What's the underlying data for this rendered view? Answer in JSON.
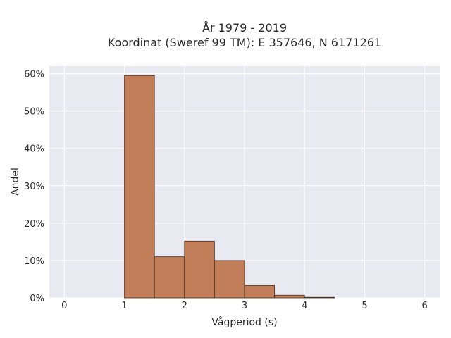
{
  "chart_data": {
    "type": "bar",
    "title_lines": [
      "År 1979 - 2019",
      "Koordinat (Sweref 99 TM): E 357646, N 6171261"
    ],
    "xlabel": "Vågperiod (s)",
    "ylabel": "Andel",
    "xlim": [
      -0.25,
      6.25
    ],
    "ylim": [
      0,
      62
    ],
    "x_ticks": [
      0,
      1,
      2,
      3,
      4,
      5,
      6
    ],
    "y_ticks": [
      0,
      10,
      20,
      30,
      40,
      50,
      60
    ],
    "y_tick_suffix": "%",
    "bins": [
      {
        "start": 1.0,
        "end": 1.5,
        "value": 59.5
      },
      {
        "start": 1.5,
        "end": 2.0,
        "value": 11.0
      },
      {
        "start": 2.0,
        "end": 2.5,
        "value": 15.2
      },
      {
        "start": 2.5,
        "end": 3.0,
        "value": 10.0
      },
      {
        "start": 3.0,
        "end": 3.5,
        "value": 3.3
      },
      {
        "start": 3.5,
        "end": 4.0,
        "value": 0.7
      },
      {
        "start": 4.0,
        "end": 4.5,
        "value": 0.15
      }
    ],
    "grid": true,
    "colors": {
      "bar_fill": "#c07d57",
      "bar_stroke": "#4a2e1e",
      "plot_bg": "#e9e9f1",
      "grid": "#ffffff"
    }
  }
}
